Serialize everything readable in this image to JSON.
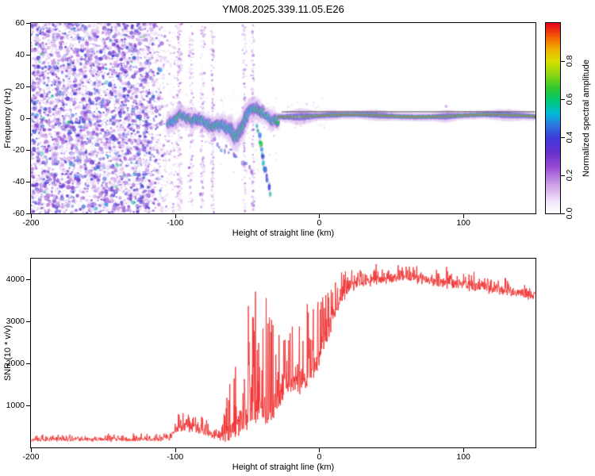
{
  "figure": {
    "title": "YM08.2025.339.11.05.E26",
    "background": "#ffffff",
    "frame_color": "#000000"
  },
  "chart_data": [
    {
      "type": "heatmap",
      "name": "spectrogram",
      "title": "YM08.2025.339.11.05.E26",
      "xlabel": "Height of straight line (km)",
      "ylabel": "Frequency (Hz)",
      "xlim": [
        -200,
        150
      ],
      "ylim": [
        -60,
        60
      ],
      "xticks": [
        -200,
        -100,
        0,
        100
      ],
      "yticks": [
        60,
        40,
        20,
        0,
        -20,
        -40,
        -60
      ],
      "grid": false,
      "colorbar": {
        "label": "Normalized spectral amplitude",
        "ticks": [
          0,
          0.2,
          0.4,
          0.6,
          0.8
        ],
        "range": [
          0,
          1
        ],
        "colormap": [
          [
            0.0,
            "#ffffff"
          ],
          [
            0.06,
            "#f3e8fa"
          ],
          [
            0.15,
            "#cfa3e8"
          ],
          [
            0.24,
            "#9b4fd6"
          ],
          [
            0.32,
            "#6a30cc"
          ],
          [
            0.4,
            "#3b3bd8"
          ],
          [
            0.47,
            "#2a7de0"
          ],
          [
            0.53,
            "#00bcd8"
          ],
          [
            0.59,
            "#00c87a"
          ],
          [
            0.66,
            "#30c830"
          ],
          [
            0.73,
            "#8cd412"
          ],
          [
            0.8,
            "#d8e000"
          ],
          [
            0.86,
            "#f0b400"
          ],
          [
            0.92,
            "#f56a00"
          ],
          [
            1.0,
            "#e8001e"
          ]
        ]
      },
      "features": {
        "noise_field": {
          "x_range": [
            -200,
            -106
          ],
          "f_range": [
            -60,
            60
          ],
          "fade_start": -118,
          "density": 5200,
          "amplitude_range": [
            0.05,
            0.45
          ]
        },
        "stripes": [
          {
            "x": -97,
            "width": 2.5
          },
          {
            "x": -89,
            "width": 2.0
          },
          {
            "x": -81,
            "width": 2.0
          },
          {
            "x": -74,
            "width": 1.5
          },
          {
            "x": -52,
            "width": 1.6
          },
          {
            "x": -46,
            "width": 1.3
          }
        ],
        "meteor_trace": {
          "x_range": [
            -105,
            -28.5
          ],
          "base_f": -3,
          "wiggle_amp": 5,
          "wiggle_period": 7.5,
          "dip_x": -57,
          "dip_depth": -8,
          "dip_width": 5.5,
          "amplitude": [
            0.5,
            1.0
          ]
        },
        "descending_tail": {
          "from": [
            -43,
            -6
          ],
          "to": [
            -34,
            -47
          ]
        },
        "carrier_line": {
          "x_range": [
            -29,
            150
          ],
          "f_center": 1.5,
          "halo_bulges": [
            [
              -13,
              8,
              1.0
            ],
            [
              8,
              6,
              0.25
            ],
            [
              40,
              9,
              0.35
            ],
            [
              88,
              6,
              0.55
            ],
            [
              130,
              11,
              0.45
            ]
          ]
        },
        "dark_line_f": 4.3
      }
    },
    {
      "type": "line",
      "name": "snr",
      "xlabel": "Height of straight line (km)",
      "ylabel": "SNR (10 * v/v)",
      "xlim": [
        -200,
        150
      ],
      "ylim": [
        0,
        4500
      ],
      "xticks": [
        -200,
        -100,
        0,
        100
      ],
      "yticks": [
        1000,
        2000,
        3000,
        4000
      ],
      "color": "#f03030",
      "envelope": [
        [
          -200,
          180,
          120
        ],
        [
          -160,
          180,
          120
        ],
        [
          -125,
          185,
          125
        ],
        [
          -110,
          195,
          140
        ],
        [
          -103,
          240,
          200
        ],
        [
          -97,
          430,
          360
        ],
        [
          -91,
          480,
          400
        ],
        [
          -85,
          430,
          380
        ],
        [
          -79,
          360,
          330
        ],
        [
          -74,
          300,
          280
        ],
        [
          -69,
          260,
          240
        ],
        [
          -64,
          300,
          800
        ],
        [
          -59,
          450,
          1600
        ],
        [
          -53,
          500,
          2300
        ],
        [
          -47,
          650,
          2800
        ],
        [
          -42,
          750,
          3100
        ],
        [
          -38,
          700,
          3100
        ],
        [
          -34,
          650,
          2600
        ],
        [
          -30,
          1150,
          1500
        ],
        [
          -24,
          1350,
          1400
        ],
        [
          -18,
          1500,
          1500
        ],
        [
          -12,
          1550,
          1600
        ],
        [
          -6,
          1700,
          1700
        ],
        [
          0,
          2100,
          1700
        ],
        [
          4,
          2500,
          1500
        ],
        [
          8,
          2900,
          1200
        ],
        [
          12,
          3300,
          900
        ],
        [
          16,
          3600,
          600
        ],
        [
          20,
          3800,
          430
        ],
        [
          28,
          3920,
          330
        ],
        [
          40,
          3980,
          300
        ],
        [
          55,
          4050,
          280
        ],
        [
          70,
          4000,
          300
        ],
        [
          85,
          3920,
          340
        ],
        [
          100,
          3880,
          320
        ],
        [
          115,
          3800,
          330
        ],
        [
          130,
          3700,
          320
        ],
        [
          150,
          3620,
          300
        ]
      ]
    }
  ]
}
